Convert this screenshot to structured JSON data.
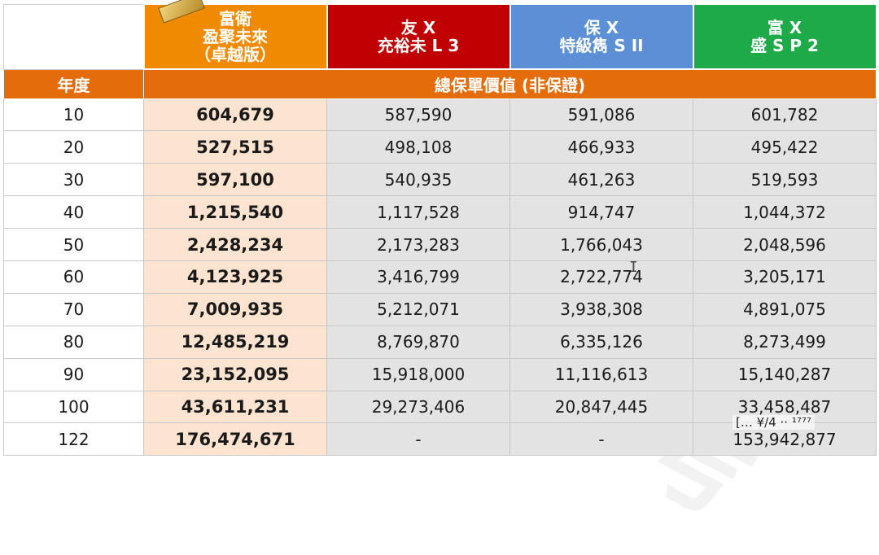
{
  "columns": [
    {
      "line1": "富衛",
      "line2": "盈聚未來",
      "line3": "（卓越版）"
    },
    {
      "line1": "友 X",
      "line2": "充裕未 L 3"
    },
    {
      "line1": "保 X",
      "line2": "特級雋 S II"
    },
    {
      "line1": "富 X",
      "line2": "盛 S P 2"
    }
  ],
  "year_label": "年度",
  "band_label": "總保單價值 (非保證)",
  "rows": [
    {
      "year": "10",
      "v": [
        "604,679",
        "587,590",
        "591,086",
        "601,782"
      ]
    },
    {
      "year": "20",
      "v": [
        "527,515",
        "498,108",
        "466,933",
        "495,422"
      ]
    },
    {
      "year": "30",
      "v": [
        "597,100",
        "540,935",
        "461,263",
        "519,593"
      ]
    },
    {
      "year": "40",
      "v": [
        "1,215,540",
        "1,117,528",
        "914,747",
        "1,044,372"
      ]
    },
    {
      "year": "50",
      "v": [
        "2,428,234",
        "2,173,283",
        "1,766,043",
        "2,048,596"
      ]
    },
    {
      "year": "60",
      "v": [
        "4,123,925",
        "3,416,799",
        "2,722,774",
        "3,205,171"
      ]
    },
    {
      "year": "70",
      "v": [
        "7,009,935",
        "5,212,071",
        "3,938,308",
        "4,891,075"
      ]
    },
    {
      "year": "80",
      "v": [
        "12,485,219",
        "8,769,870",
        "6,335,126",
        "8,273,499"
      ]
    },
    {
      "year": "90",
      "v": [
        "23,152,095",
        "15,918,000",
        "11,116,613",
        "15,140,287"
      ]
    },
    {
      "year": "100",
      "v": [
        "43,611,231",
        "29,273,406",
        "20,847,445",
        "33,458,487"
      ]
    },
    {
      "year": "122",
      "v": [
        "176,474,671",
        "-",
        "-",
        "153,942,877"
      ]
    }
  ],
  "watermark": "只供內部參考",
  "overlay_text": "[… ¥/4 ·· ¹⁷⁷⁷"
}
